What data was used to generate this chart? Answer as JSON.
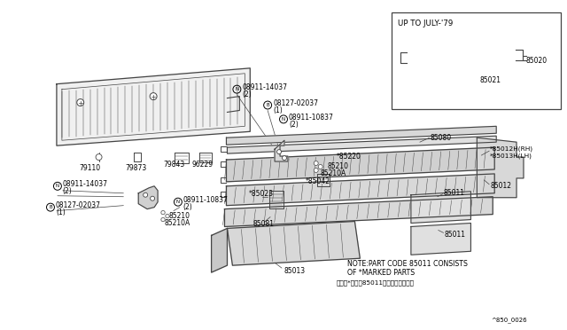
{
  "bg_color": "#ffffff",
  "line_color": "#444444",
  "fig_ref": "^850_0026",
  "inset_title": "UP TO JULY-'79",
  "note_line1": "NOTE:PART CODE 85011 CONSISTS",
  "note_line2": "OF *MARKED PARTS",
  "note_line3": "（注）*印は、85011の構成部品です。"
}
